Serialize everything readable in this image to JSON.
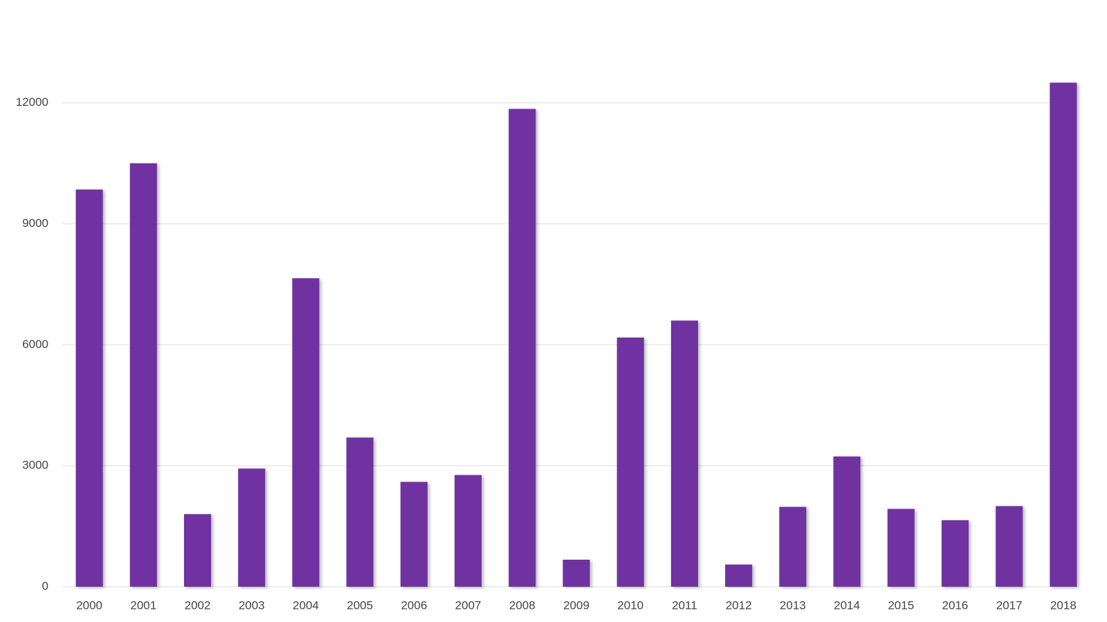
{
  "chart_data": {
    "type": "bar",
    "categories": [
      "2000",
      "2001",
      "2002",
      "2003",
      "2004",
      "2005",
      "2006",
      "2007",
      "2008",
      "2009",
      "2010",
      "2011",
      "2012",
      "2013",
      "2014",
      "2015",
      "2016",
      "2017",
      "2018"
    ],
    "values": [
      9850,
      10500,
      1800,
      2930,
      7650,
      3700,
      2600,
      2770,
      11850,
      670,
      6180,
      6600,
      550,
      1980,
      3230,
      1930,
      1650,
      2000,
      12500
    ],
    "color": "#7030a0",
    "ylim": [
      0,
      14550
    ],
    "yticks": [
      0,
      3000,
      6000,
      9000,
      12000
    ],
    "grid": true
  }
}
